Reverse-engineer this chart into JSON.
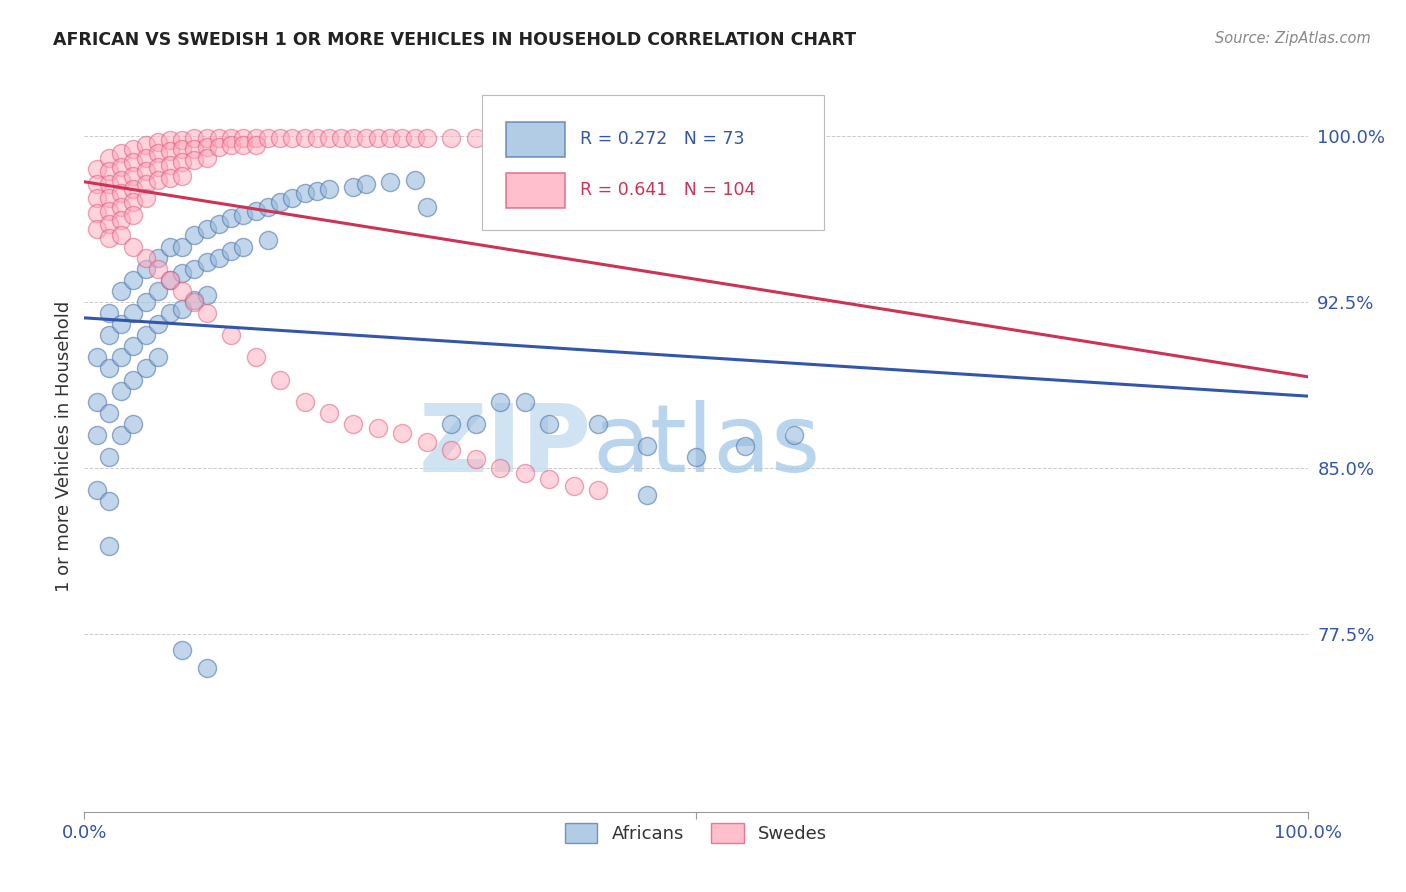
{
  "title": "AFRICAN VS SWEDISH 1 OR MORE VEHICLES IN HOUSEHOLD CORRELATION CHART",
  "source": "Source: ZipAtlas.com",
  "ylabel": "1 or more Vehicles in Household",
  "xlim": [
    0.0,
    1.0
  ],
  "ylim": [
    0.695,
    1.025
  ],
  "ytick_vals": [
    0.775,
    0.85,
    0.925,
    1.0
  ],
  "ytick_labels": [
    "77.5%",
    "85.0%",
    "92.5%",
    "100.0%"
  ],
  "grid_color": "#cccccc",
  "blue_color": "#99bbdd",
  "pink_color": "#ffaabb",
  "blue_edge_color": "#5577aa",
  "pink_edge_color": "#dd5577",
  "blue_line_color": "#3355aa",
  "pink_line_color": "#cc3355",
  "legend_blue_r": "0.272",
  "legend_blue_n": "73",
  "legend_pink_r": "0.641",
  "legend_pink_n": "104",
  "watermark_zip": "ZIP",
  "watermark_atlas": "atlas",
  "africans_x": [
    0.01,
    0.01,
    0.01,
    0.01,
    0.02,
    0.02,
    0.02,
    0.02,
    0.02,
    0.02,
    0.02,
    0.03,
    0.03,
    0.03,
    0.03,
    0.03,
    0.04,
    0.04,
    0.04,
    0.04,
    0.04,
    0.05,
    0.05,
    0.05,
    0.05,
    0.06,
    0.06,
    0.06,
    0.06,
    0.07,
    0.07,
    0.07,
    0.08,
    0.08,
    0.08,
    0.09,
    0.09,
    0.09,
    0.1,
    0.1,
    0.1,
    0.11,
    0.11,
    0.12,
    0.12,
    0.13,
    0.13,
    0.14,
    0.15,
    0.15,
    0.16,
    0.17,
    0.18,
    0.19,
    0.2,
    0.22,
    0.23,
    0.25,
    0.27,
    0.28,
    0.3,
    0.32,
    0.34,
    0.36,
    0.38,
    0.42,
    0.46,
    0.5,
    0.54,
    0.58,
    0.08,
    0.1,
    0.46
  ],
  "africans_y": [
    0.9,
    0.88,
    0.865,
    0.84,
    0.92,
    0.91,
    0.895,
    0.875,
    0.855,
    0.835,
    0.815,
    0.93,
    0.915,
    0.9,
    0.885,
    0.865,
    0.935,
    0.92,
    0.905,
    0.89,
    0.87,
    0.94,
    0.925,
    0.91,
    0.895,
    0.945,
    0.93,
    0.915,
    0.9,
    0.95,
    0.935,
    0.92,
    0.95,
    0.938,
    0.922,
    0.955,
    0.94,
    0.926,
    0.958,
    0.943,
    0.928,
    0.96,
    0.945,
    0.963,
    0.948,
    0.964,
    0.95,
    0.966,
    0.968,
    0.953,
    0.97,
    0.972,
    0.974,
    0.975,
    0.976,
    0.977,
    0.978,
    0.979,
    0.98,
    0.968,
    0.87,
    0.87,
    0.88,
    0.88,
    0.87,
    0.87,
    0.86,
    0.855,
    0.86,
    0.865,
    0.768,
    0.76,
    0.838
  ],
  "swedes_x": [
    0.01,
    0.01,
    0.01,
    0.01,
    0.01,
    0.02,
    0.02,
    0.02,
    0.02,
    0.02,
    0.02,
    0.02,
    0.03,
    0.03,
    0.03,
    0.03,
    0.03,
    0.03,
    0.04,
    0.04,
    0.04,
    0.04,
    0.04,
    0.04,
    0.05,
    0.05,
    0.05,
    0.05,
    0.05,
    0.06,
    0.06,
    0.06,
    0.06,
    0.07,
    0.07,
    0.07,
    0.07,
    0.08,
    0.08,
    0.08,
    0.08,
    0.09,
    0.09,
    0.09,
    0.1,
    0.1,
    0.1,
    0.11,
    0.11,
    0.12,
    0.12,
    0.13,
    0.13,
    0.14,
    0.14,
    0.15,
    0.16,
    0.17,
    0.18,
    0.19,
    0.2,
    0.21,
    0.22,
    0.23,
    0.24,
    0.25,
    0.26,
    0.27,
    0.28,
    0.3,
    0.32,
    0.34,
    0.36,
    0.38,
    0.4,
    0.42,
    0.44,
    0.46,
    0.48,
    0.5,
    0.03,
    0.04,
    0.05,
    0.06,
    0.07,
    0.08,
    0.09,
    0.1,
    0.12,
    0.14,
    0.16,
    0.18,
    0.2,
    0.22,
    0.24,
    0.26,
    0.28,
    0.3,
    0.32,
    0.34,
    0.36,
    0.38,
    0.4,
    0.42
  ],
  "swedes_y": [
    0.985,
    0.978,
    0.972,
    0.965,
    0.958,
    0.99,
    0.984,
    0.978,
    0.972,
    0.966,
    0.96,
    0.954,
    0.992,
    0.986,
    0.98,
    0.974,
    0.968,
    0.962,
    0.994,
    0.988,
    0.982,
    0.976,
    0.97,
    0.964,
    0.996,
    0.99,
    0.984,
    0.978,
    0.972,
    0.997,
    0.992,
    0.986,
    0.98,
    0.998,
    0.993,
    0.987,
    0.981,
    0.998,
    0.994,
    0.988,
    0.982,
    0.999,
    0.994,
    0.989,
    0.999,
    0.995,
    0.99,
    0.999,
    0.995,
    0.999,
    0.996,
    0.999,
    0.996,
    0.999,
    0.996,
    0.999,
    0.999,
    0.999,
    0.999,
    0.999,
    0.999,
    0.999,
    0.999,
    0.999,
    0.999,
    0.999,
    0.999,
    0.999,
    0.999,
    0.999,
    0.999,
    0.999,
    0.999,
    0.999,
    0.999,
    0.999,
    0.999,
    0.999,
    0.999,
    0.999,
    0.955,
    0.95,
    0.945,
    0.94,
    0.935,
    0.93,
    0.925,
    0.92,
    0.91,
    0.9,
    0.89,
    0.88,
    0.875,
    0.87,
    0.868,
    0.866,
    0.862,
    0.858,
    0.854,
    0.85,
    0.848,
    0.845,
    0.842,
    0.84
  ]
}
